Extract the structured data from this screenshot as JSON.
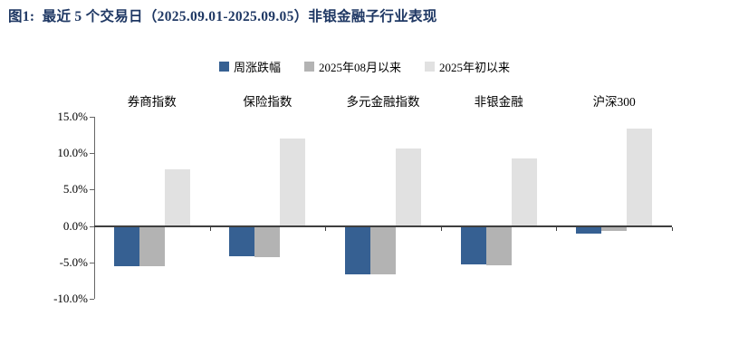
{
  "page": {
    "title": "图1:  最近 5 个交易日（2025.09.01-2025.09.05）非银金融子行业表现"
  },
  "colors": {
    "title_text": "#1F3864",
    "series_week": "#366092",
    "series_aug": "#B3B3B3",
    "series_ytd": "#E1E1E1",
    "zero_axis": "#3F3F3F",
    "y_axis": "#666666"
  },
  "chart_data": {
    "type": "bar",
    "title": "最近 5 个交易日（2025.09.01-2025.09.05）非银金融子行业表现",
    "categories": [
      "券商指数",
      "保险指数",
      "多元金融指数",
      "非银金融",
      "沪深300"
    ],
    "series": [
      {
        "name": "周涨跌幅",
        "color": "#366092",
        "values": [
          -5.5,
          -4.2,
          -6.7,
          -5.3,
          -1.0
        ]
      },
      {
        "name": "2025年08月以来",
        "color": "#B3B3B3",
        "values": [
          -5.5,
          -4.3,
          -6.6,
          -5.4,
          -0.7
        ]
      },
      {
        "name": "2025年初以来",
        "color": "#E1E1E1",
        "values": [
          7.8,
          12.0,
          10.7,
          9.3,
          13.4
        ]
      }
    ],
    "y_ticks": [
      "15.0%",
      "10.0%",
      "5.0%",
      "0.0%",
      "-5.0%",
      "-10.0%"
    ],
    "ylim": [
      -10,
      15
    ],
    "xlabel": "",
    "ylabel": "",
    "grid": false,
    "legend_position": "top-center",
    "category_labels_position": "above-plot"
  }
}
